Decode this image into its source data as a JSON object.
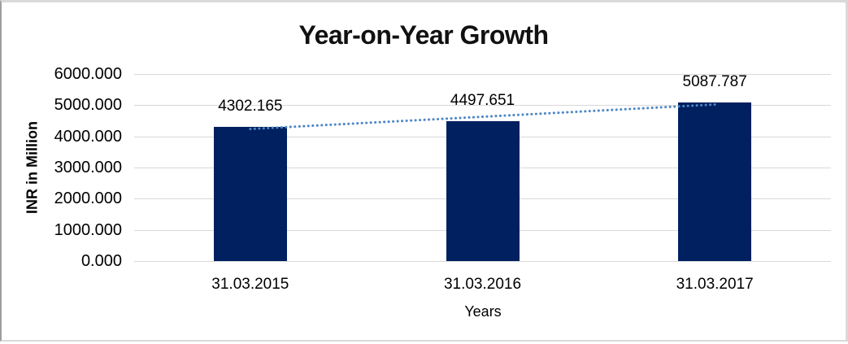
{
  "chart": {
    "title": "Year-on-Year Growth",
    "y_axis_title": "INR in Million",
    "x_axis_title": "Years"
  },
  "chart_data": {
    "type": "bar",
    "title": "Year-on-Year Growth",
    "xlabel": "Years",
    "ylabel": "INR in Million",
    "categories": [
      "31.03.2015",
      "31.03.2016",
      "31.03.2017"
    ],
    "values": [
      4302.165,
      4497.651,
      5087.787
    ],
    "data_labels": [
      "4302.165",
      "4497.651",
      "5087.787"
    ],
    "ylim": [
      0,
      6000
    ],
    "ytick_step": 1000,
    "ytick_labels": [
      "0.000",
      "1000.000",
      "2000.000",
      "3000.000",
      "4000.000",
      "5000.000",
      "6000.000"
    ],
    "grid": true,
    "legend": false,
    "bar_color": "#002060",
    "gridline_color": "#d9d9d9",
    "trendline": {
      "type": "linear",
      "style": "dotted",
      "color": "#4e86c6"
    }
  }
}
